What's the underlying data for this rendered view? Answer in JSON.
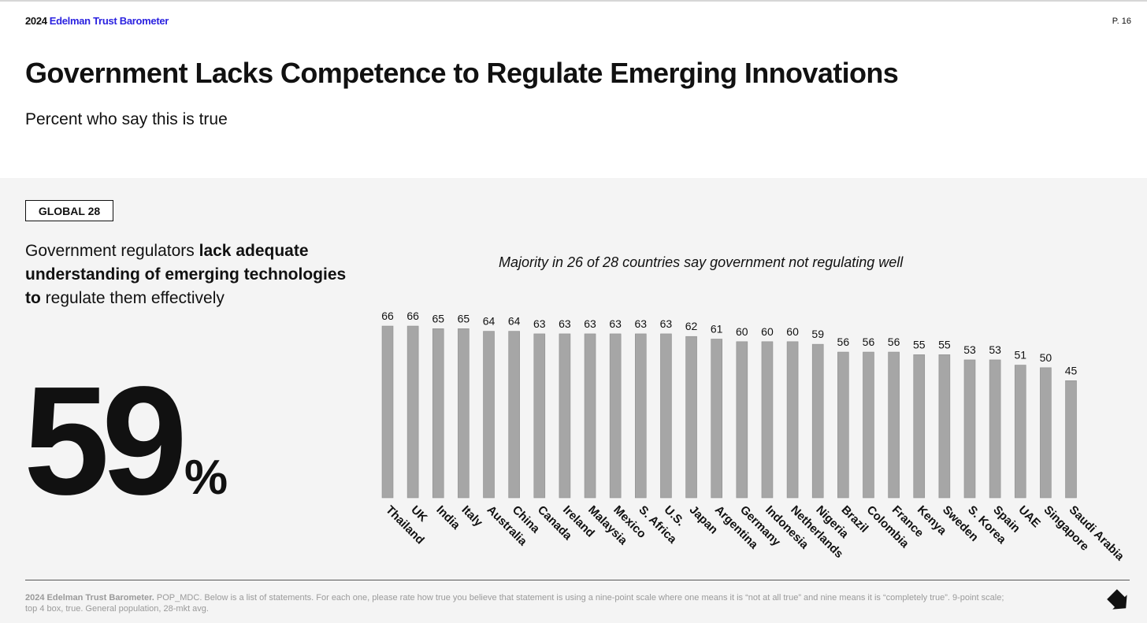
{
  "header": {
    "brand_year": "2024",
    "brand_name": "Edelman Trust Barometer",
    "page": "P. 16"
  },
  "title": "Government Lacks Competence to Regulate Emerging Innovations",
  "subtitle": "Percent who say this is true",
  "badge": "GLOBAL 28",
  "statement": {
    "part1": "Government regulators ",
    "bold": "lack adequate understanding of emerging technologies to",
    "part2": " regulate them effectively"
  },
  "global_value": "59",
  "global_unit": "%",
  "chart_note": "Majority in 26 of 28 countries say government not regulating well",
  "chart_data": {
    "type": "bar",
    "categories": [
      "Thailand",
      "UK",
      "India",
      "Italy",
      "Australia",
      "China",
      "Canada",
      "Ireland",
      "Malaysia",
      "Mexico",
      "S. Africa",
      "U.S.",
      "Japan",
      "Argentina",
      "Germany",
      "Indonesia",
      "Netherlands",
      "Nigeria",
      "Brazil",
      "Colombia",
      "France",
      "Kenya",
      "Sweden",
      "S. Korea",
      "Spain",
      "UAE",
      "Singapore",
      "Saudi Arabia"
    ],
    "values": [
      66,
      66,
      65,
      65,
      64,
      64,
      63,
      63,
      63,
      63,
      63,
      63,
      62,
      61,
      60,
      60,
      60,
      59,
      56,
      56,
      56,
      55,
      55,
      53,
      53,
      51,
      50,
      45
    ],
    "ylim": [
      0,
      66
    ],
    "bar_color": "#a6a6a6"
  },
  "footnote": {
    "bold": "2024 Edelman Trust Barometer.",
    "text": " POP_MDC. Below is a list of statements. For each one, please rate how true you believe that statement is using a nine-point scale where one means it is “not at all true” and nine means it is “completely true”. 9-point scale; top 4 box, true. General population, 28-mkt avg."
  },
  "icons": {
    "next": "arrow-down-right-icon"
  }
}
